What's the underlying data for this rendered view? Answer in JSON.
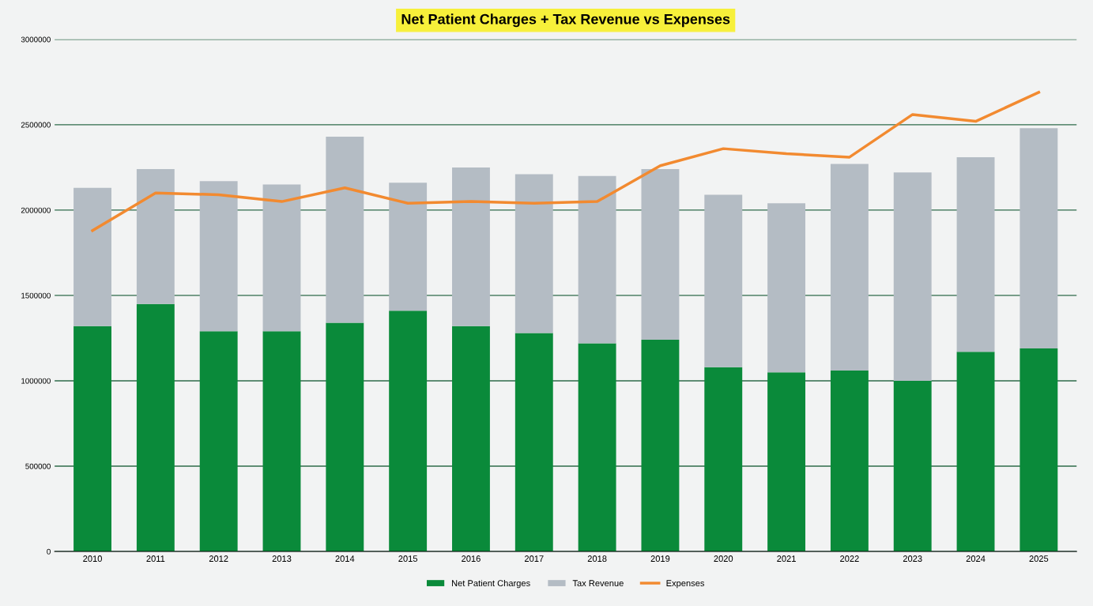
{
  "chart_data": {
    "type": "bar",
    "stacked": true,
    "title": "Net Patient Charges + Tax Revenue vs Expenses",
    "categories": [
      "2010",
      "2011",
      "2012",
      "2013",
      "2014",
      "2015",
      "2016",
      "2017",
      "2018",
      "2019",
      "2020",
      "2021",
      "2022",
      "2023",
      "2024",
      "2025"
    ],
    "series": [
      {
        "name": "Net Patient Charges",
        "color": "#0a8a3a",
        "values": [
          1320000,
          1450000,
          1290000,
          1290000,
          1340000,
          1410000,
          1320000,
          1280000,
          1220000,
          1240000,
          1080000,
          1050000,
          1060000,
          1000000,
          1170000,
          1190000
        ]
      },
      {
        "name": "Tax Revenue",
        "color": "#b4bcc4",
        "values": [
          810000,
          790000,
          880000,
          860000,
          1090000,
          750000,
          930000,
          930000,
          980000,
          1000000,
          1010000,
          990000,
          1210000,
          1220000,
          1140000,
          1290000
        ]
      },
      {
        "name": "Expenses",
        "type": "line",
        "color": "#f28a30",
        "values": [
          1880000,
          2100000,
          2090000,
          2050000,
          2130000,
          2040000,
          2050000,
          2040000,
          2050000,
          2260000,
          2360000,
          2330000,
          2310000,
          2560000,
          2520000,
          2690000
        ]
      }
    ],
    "ylim": [
      0,
      3000000
    ],
    "yticks": [
      0,
      500000,
      1000000,
      1500000,
      2000000,
      2500000,
      3000000
    ],
    "grid": "y",
    "legend": "bottom",
    "marker": "none",
    "line_style": "solid"
  }
}
